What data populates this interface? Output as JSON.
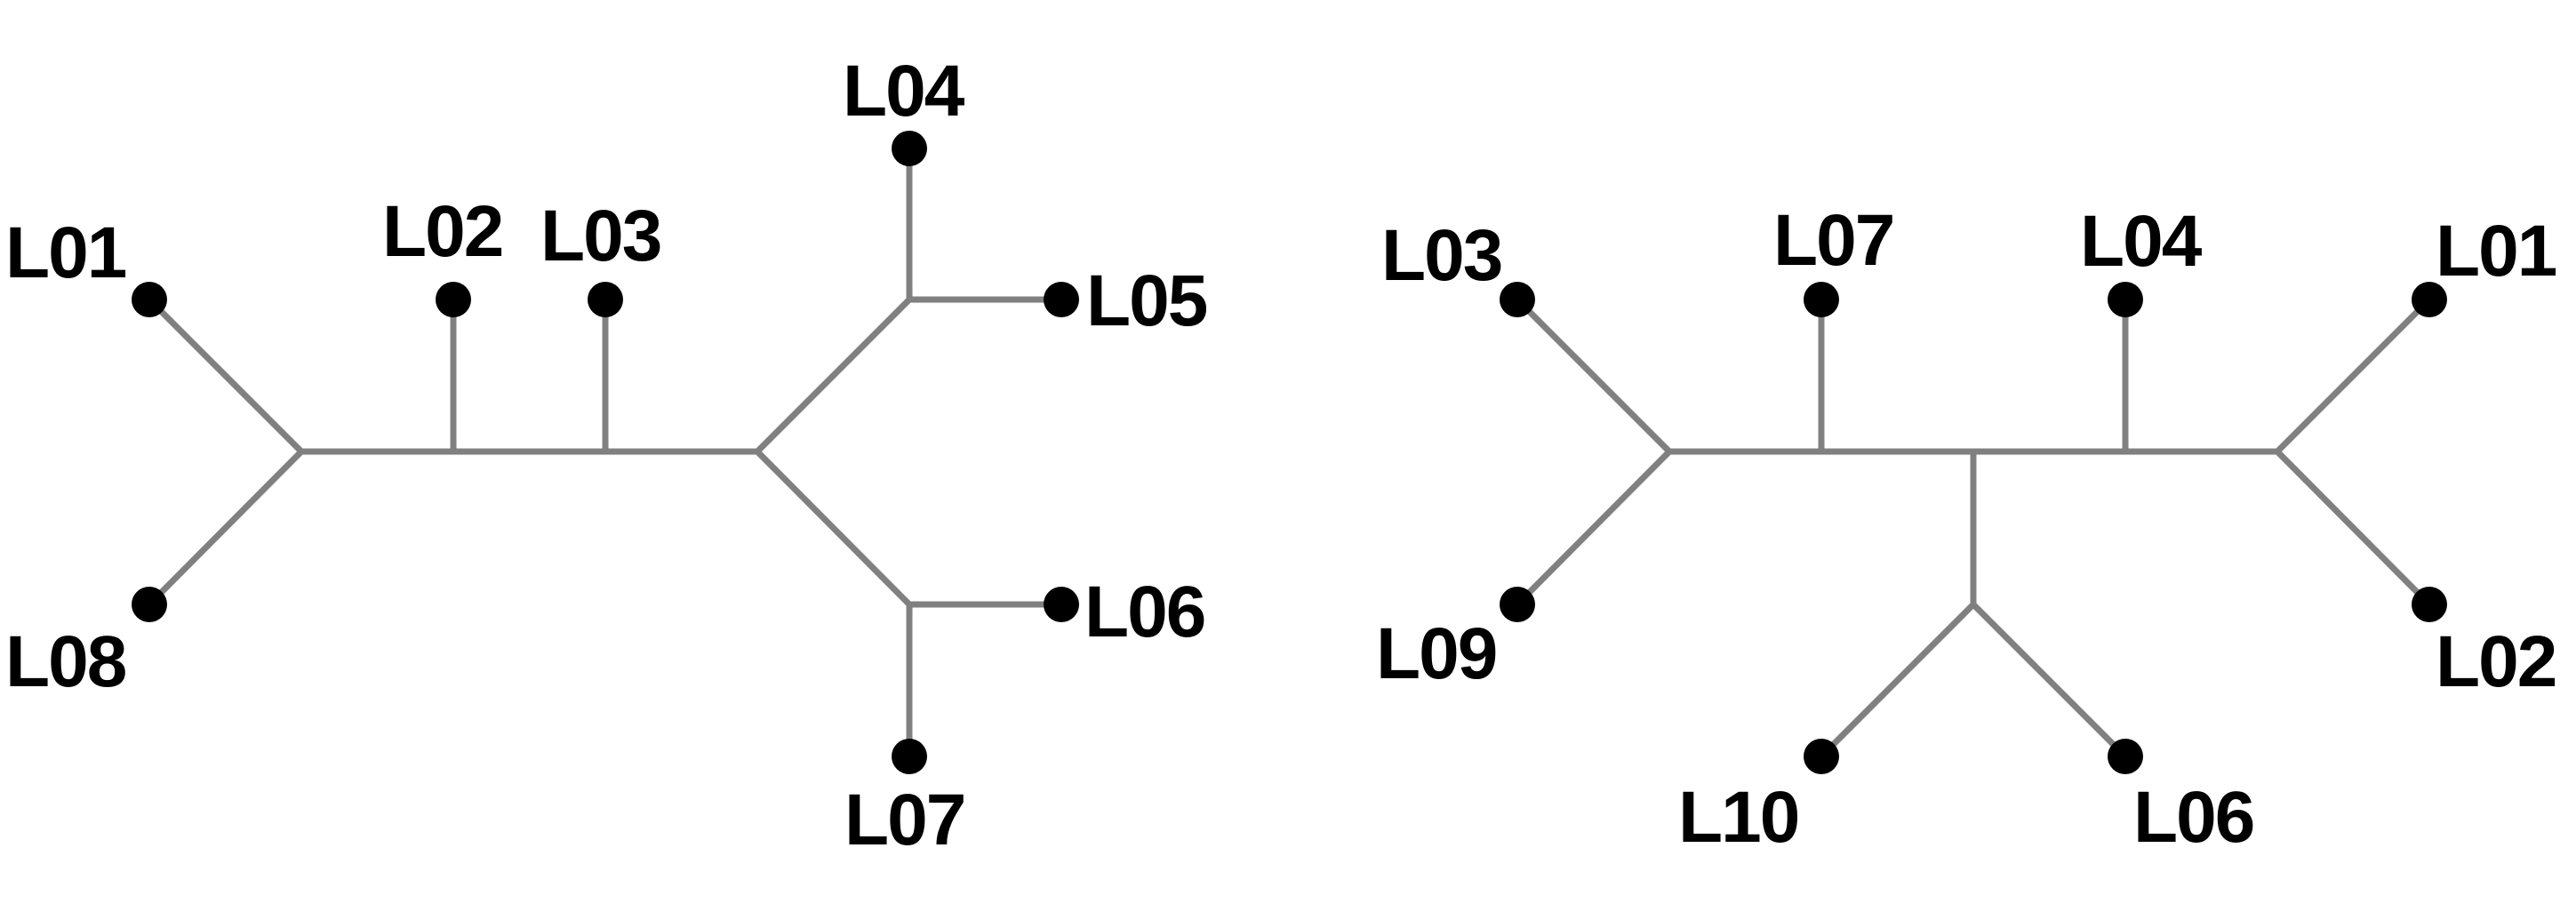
{
  "colors": {
    "edge": "#808080",
    "node": "#000000",
    "background": "#ffffff"
  },
  "trees": [
    {
      "leaves": [
        {
          "id": "L01",
          "label": "L01"
        },
        {
          "id": "L08",
          "label": "L08"
        },
        {
          "id": "L02",
          "label": "L02"
        },
        {
          "id": "L03",
          "label": "L03"
        },
        {
          "id": "L04",
          "label": "L04"
        },
        {
          "id": "L05",
          "label": "L05"
        },
        {
          "id": "L06",
          "label": "L06"
        },
        {
          "id": "L07",
          "label": "L07"
        }
      ]
    },
    {
      "leaves": [
        {
          "id": "L03",
          "label": "L03"
        },
        {
          "id": "L09",
          "label": "L09"
        },
        {
          "id": "L07",
          "label": "L07"
        },
        {
          "id": "L04",
          "label": "L04"
        },
        {
          "id": "L01",
          "label": "L01"
        },
        {
          "id": "L02",
          "label": "L02"
        },
        {
          "id": "L10",
          "label": "L10"
        },
        {
          "id": "L06",
          "label": "L06"
        }
      ]
    }
  ]
}
